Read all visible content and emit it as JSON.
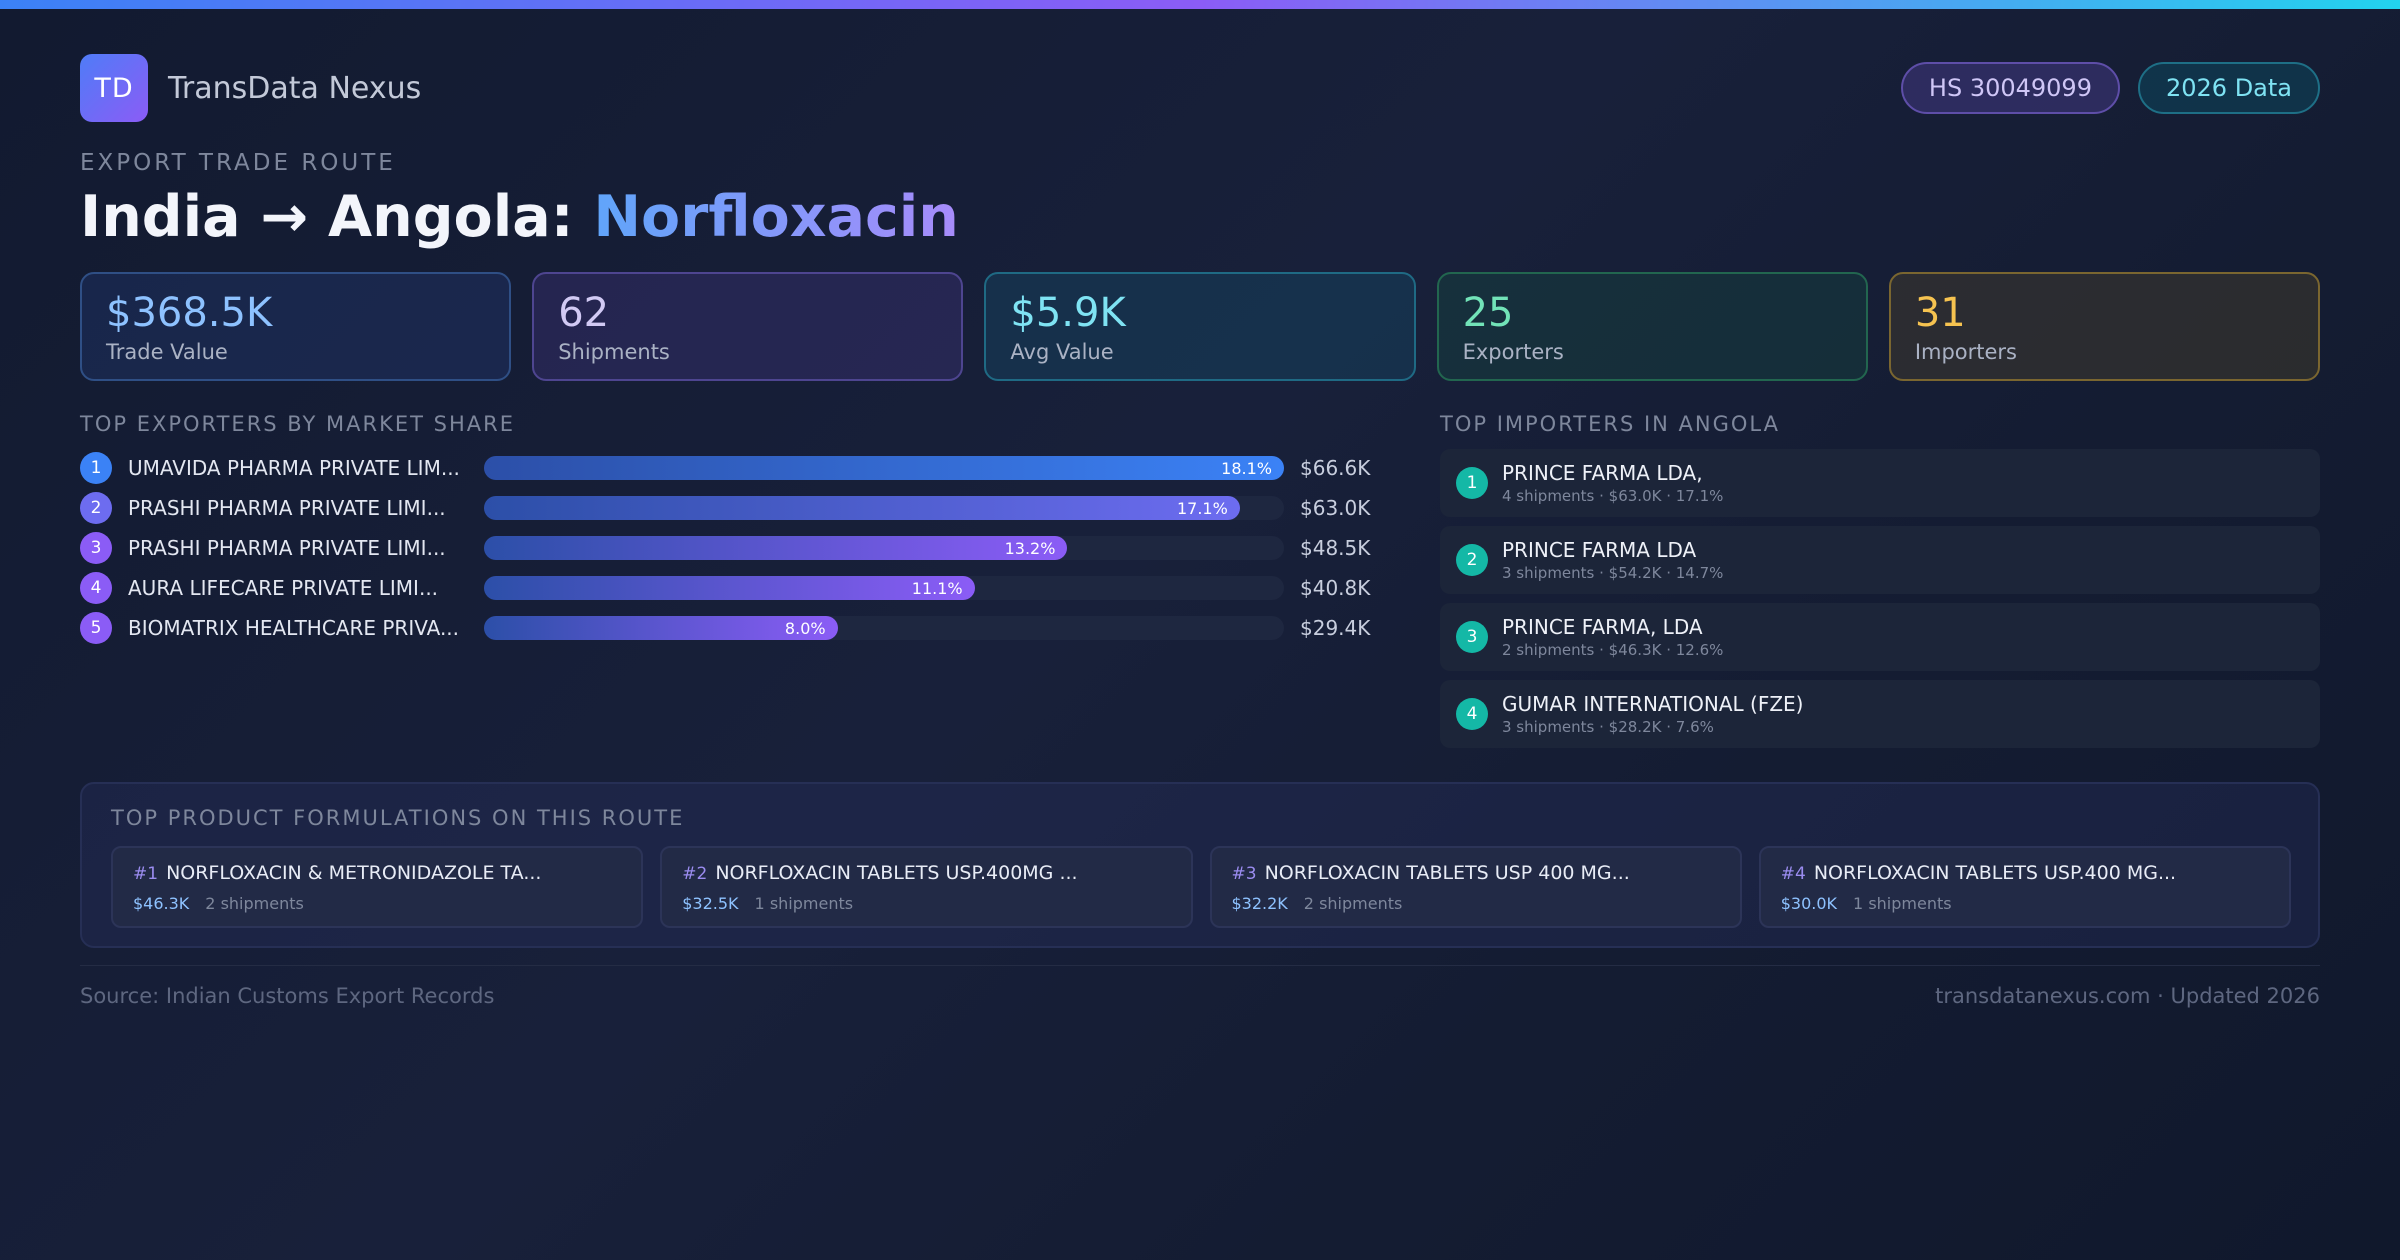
{
  "brand": {
    "logo_text": "TD",
    "name": "TransData Nexus"
  },
  "badges": {
    "hs_code": "HS 30049099",
    "year": "2026 Data"
  },
  "route": {
    "eyebrow": "EXPORT TRADE ROUTE",
    "title_main": "India → Angola: ",
    "title_product": "Norfloxacin"
  },
  "stats": [
    {
      "value": "$368.5K",
      "label": "Trade Value"
    },
    {
      "value": "62",
      "label": "Shipments"
    },
    {
      "value": "$5.9K",
      "label": "Avg Value"
    },
    {
      "value": "25",
      "label": "Exporters"
    },
    {
      "value": "31",
      "label": "Importers"
    }
  ],
  "exporters": {
    "heading": "TOP EXPORTERS BY MARKET SHARE",
    "items": [
      {
        "rank": "1",
        "name": "UMAVIDA PHARMA PRIVATE LIM...",
        "share_label": "18.1%",
        "share": 18.1,
        "value": "$66.6K",
        "color": "#3b82f6"
      },
      {
        "rank": "2",
        "name": "PRASHI PHARMA PRIVATE LIMI...",
        "share_label": "17.1%",
        "share": 17.1,
        "value": "$63.0K",
        "color": "#6d6cf0"
      },
      {
        "rank": "3",
        "name": "PRASHI PHARMA PRIVATE LIMI...",
        "share_label": "13.2%",
        "share": 13.2,
        "value": "$48.5K",
        "color": "#8b5cf6"
      },
      {
        "rank": "4",
        "name": "AURA LIFECARE PRIVATE LIMI...",
        "share_label": "11.1%",
        "share": 11.1,
        "value": "$40.8K",
        "color": "#8b5cf6"
      },
      {
        "rank": "5",
        "name": "BIOMATRIX HEALTHCARE PRIVA...",
        "share_label": "8.0%",
        "share": 8.0,
        "value": "$29.4K",
        "color": "#8b5cf6"
      }
    ]
  },
  "importers": {
    "heading": "TOP IMPORTERS IN ANGOLA",
    "items": [
      {
        "rank": "1",
        "name": "PRINCE FARMA LDA,",
        "detail": "4 shipments · $63.0K · 17.1%"
      },
      {
        "rank": "2",
        "name": "PRINCE FARMA LDA",
        "detail": "3 shipments · $54.2K · 14.7%"
      },
      {
        "rank": "3",
        "name": "PRINCE FARMA, LDA",
        "detail": "2 shipments · $46.3K · 12.6%"
      },
      {
        "rank": "4",
        "name": "GUMAR INTERNATIONAL (FZE)",
        "detail": "3 shipments · $28.2K · 7.6%"
      }
    ]
  },
  "formulations": {
    "heading": "TOP PRODUCT FORMULATIONS ON THIS ROUTE",
    "items": [
      {
        "num": "#1",
        "name": "NORFLOXACIN & METRONIDAZOLE TA...",
        "value": "$46.3K",
        "shipments": "2 shipments"
      },
      {
        "num": "#2",
        "name": "NORFLOXACIN TABLETS USP.400MG ...",
        "value": "$32.5K",
        "shipments": "1 shipments"
      },
      {
        "num": "#3",
        "name": "NORFLOXACIN TABLETS USP 400 MG...",
        "value": "$32.2K",
        "shipments": "2 shipments"
      },
      {
        "num": "#4",
        "name": "NORFLOXACIN TABLETS USP.400 MG...",
        "value": "$30.0K",
        "shipments": "1 shipments"
      }
    ]
  },
  "footer": {
    "source": "Source: Indian Customs Export Records",
    "site": "transdatanexus.com · Updated 2026"
  }
}
